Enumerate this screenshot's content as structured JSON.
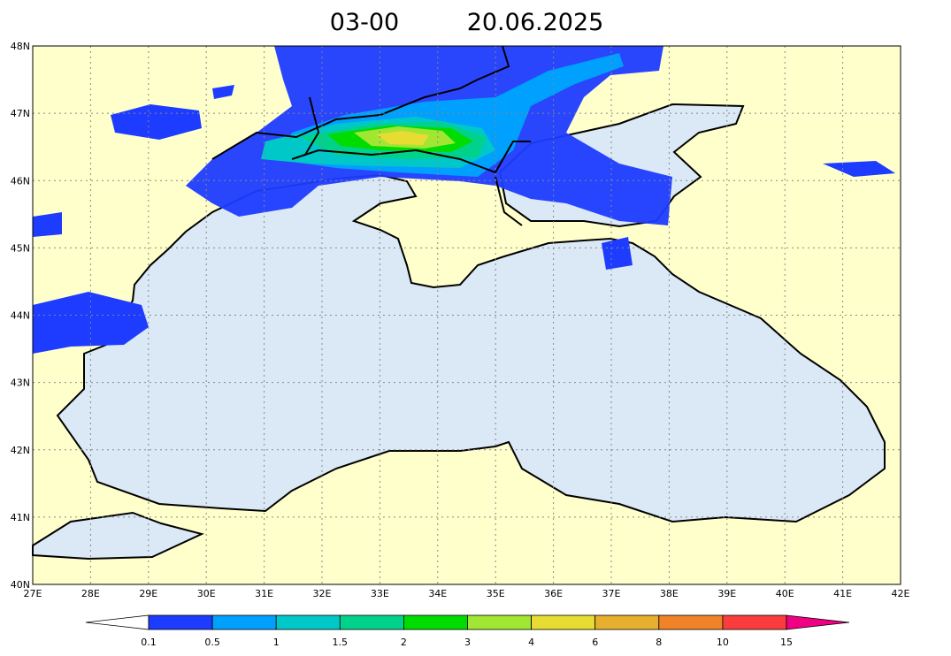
{
  "title": {
    "time": "03-00",
    "date": "20.06.2025"
  },
  "lat_labels": [
    "40N",
    "41N",
    "42N",
    "43N",
    "44N",
    "45N",
    "46N",
    "47N",
    "48N"
  ],
  "lon_labels": [
    "27E",
    "28E",
    "29E",
    "30E",
    "31E",
    "32E",
    "33E",
    "34E",
    "35E",
    "36E",
    "37E",
    "38E",
    "39E",
    "40E",
    "41E",
    "42E"
  ],
  "colorbar": {
    "levels": [
      0.1,
      0.5,
      1,
      1.5,
      2,
      3,
      4,
      6,
      8,
      10,
      15
    ],
    "colors": [
      "#1e3cff",
      "#00a0ff",
      "#00c8c8",
      "#00d28c",
      "#00dc00",
      "#a0e632",
      "#e6dc32",
      "#e6af2d",
      "#f08228",
      "#fa3c3c",
      "#f00082"
    ]
  }
}
